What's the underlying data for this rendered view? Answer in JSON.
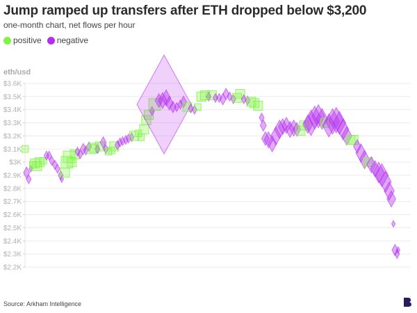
{
  "title": "Jump ramped up transfers after ETH dropped below $3,200",
  "subtitle": "one-month chart, net flows per hour",
  "legend": [
    {
      "label": "positive",
      "color": "#7ef542"
    },
    {
      "label": "negative",
      "color": "#b52ef0"
    }
  ],
  "source": "Source: Arkham Intelligence",
  "logo_text": "B",
  "chart_data": {
    "type": "scatter",
    "title": "Jump ramped up transfers after ETH dropped below $3,200",
    "subtitle": "one-month chart, net flows per hour",
    "ylabel": "eth/usd",
    "xlabel": "",
    "ylim": [
      2200,
      3600
    ],
    "xlim": [
      0,
      735
    ],
    "y_ticks": [
      "$2.2K",
      "$2.3K",
      "$2.4K",
      "$2.5K",
      "$2.6K",
      "$2.7K",
      "$2.8K",
      "$2.9K",
      "$3K",
      "$3.1K",
      "$3.2K",
      "$3.3K",
      "$3.4K",
      "$3.5K",
      "$3.6K"
    ],
    "y_tick_values": [
      2200,
      2300,
      2400,
      2500,
      2600,
      2700,
      2800,
      2900,
      3000,
      3100,
      3200,
      3300,
      3400,
      3500,
      3600
    ],
    "grid": true,
    "legend_placement": "top-left",
    "colors": {
      "positive": "#7ef542",
      "negative": "#b52ef0"
    },
    "marker_shapes": {
      "positive": "square",
      "negative": "diamond"
    },
    "points_fields": [
      "hour",
      "eth_usd",
      "net_flow"
    ],
    "points": [
      [
        0,
        3100,
        1
      ],
      [
        3,
        2920,
        -3
      ],
      [
        7,
        2870,
        -2
      ],
      [
        11,
        2950,
        -1
      ],
      [
        15,
        2980,
        1
      ],
      [
        19,
        2990,
        2
      ],
      [
        23,
        2970,
        2
      ],
      [
        28,
        3000,
        2
      ],
      [
        35,
        3010,
        1
      ],
      [
        41,
        3050,
        -2
      ],
      [
        46,
        3050,
        -2
      ],
      [
        51,
        3010,
        -2
      ],
      [
        57,
        2980,
        -2
      ],
      [
        62,
        2950,
        -2
      ],
      [
        68,
        2900,
        -2
      ],
      [
        70,
        2870,
        -1
      ],
      [
        76,
        2920,
        2
      ],
      [
        80,
        3000,
        3
      ],
      [
        84,
        3040,
        3
      ],
      [
        89,
        3000,
        2
      ],
      [
        95,
        3060,
        2
      ],
      [
        100,
        3080,
        -2
      ],
      [
        105,
        3060,
        -2
      ],
      [
        111,
        3100,
        -3
      ],
      [
        116,
        3090,
        -2
      ],
      [
        122,
        3120,
        -2
      ],
      [
        127,
        3100,
        2
      ],
      [
        132,
        3110,
        2
      ],
      [
        138,
        3100,
        -2
      ],
      [
        143,
        3120,
        2
      ],
      [
        149,
        3150,
        -3
      ],
      [
        154,
        3100,
        -2
      ],
      [
        159,
        3080,
        1
      ],
      [
        165,
        3090,
        1
      ],
      [
        170,
        3120,
        2
      ],
      [
        176,
        3130,
        -2
      ],
      [
        181,
        3150,
        -2
      ],
      [
        186,
        3160,
        -2
      ],
      [
        192,
        3170,
        -2
      ],
      [
        197,
        3180,
        -2
      ],
      [
        203,
        3190,
        -2
      ],
      [
        208,
        3200,
        2
      ],
      [
        216,
        3220,
        1
      ],
      [
        221,
        3190,
        1
      ],
      [
        227,
        3250,
        2
      ],
      [
        231,
        3320,
        2
      ],
      [
        236,
        3360,
        2
      ],
      [
        242,
        3390,
        -2
      ],
      [
        247,
        3440,
        3
      ],
      [
        255,
        3470,
        -4
      ],
      [
        262,
        3470,
        -5
      ],
      [
        265,
        3440,
        -40
      ],
      [
        269,
        3490,
        -5
      ],
      [
        275,
        3450,
        -4
      ],
      [
        282,
        3420,
        -3
      ],
      [
        289,
        3420,
        -2
      ],
      [
        296,
        3440,
        -2
      ],
      [
        302,
        3460,
        -3
      ],
      [
        309,
        3420,
        2
      ],
      [
        316,
        3410,
        -2
      ],
      [
        323,
        3400,
        -2
      ],
      [
        329,
        3420,
        1
      ],
      [
        336,
        3500,
        2
      ],
      [
        343,
        3510,
        2
      ],
      [
        350,
        3500,
        -2
      ],
      [
        356,
        3510,
        2
      ],
      [
        363,
        3490,
        -2
      ],
      [
        370,
        3490,
        -2
      ],
      [
        377,
        3480,
        -3
      ],
      [
        383,
        3520,
        -3
      ],
      [
        390,
        3500,
        -2
      ],
      [
        397,
        3480,
        -2
      ],
      [
        404,
        3490,
        2
      ],
      [
        410,
        3520,
        2
      ],
      [
        417,
        3480,
        -2
      ],
      [
        424,
        3470,
        -2
      ],
      [
        431,
        3460,
        2
      ],
      [
        437,
        3450,
        2
      ],
      [
        444,
        3430,
        2
      ],
      [
        451,
        3340,
        -2
      ],
      [
        454,
        3280,
        -3
      ],
      [
        458,
        3180,
        -4
      ],
      [
        464,
        3170,
        -5
      ],
      [
        471,
        3140,
        -5
      ],
      [
        478,
        3200,
        -6
      ],
      [
        485,
        3250,
        -6
      ],
      [
        491,
        3270,
        -5
      ],
      [
        498,
        3280,
        -5
      ],
      [
        505,
        3250,
        -5
      ],
      [
        512,
        3260,
        -5
      ],
      [
        518,
        3250,
        -4
      ],
      [
        525,
        3240,
        2
      ],
      [
        532,
        3280,
        2
      ],
      [
        539,
        3290,
        -6
      ],
      [
        545,
        3300,
        -9
      ],
      [
        552,
        3340,
        -8
      ],
      [
        559,
        3350,
        -8
      ],
      [
        566,
        3330,
        -7
      ],
      [
        572,
        3300,
        2
      ],
      [
        579,
        3280,
        -8
      ],
      [
        586,
        3310,
        -9
      ],
      [
        593,
        3320,
        -9
      ],
      [
        599,
        3300,
        -8
      ],
      [
        606,
        3250,
        -7
      ],
      [
        613,
        3200,
        -6
      ],
      [
        620,
        3170,
        2
      ],
      [
        626,
        3170,
        2
      ],
      [
        633,
        3120,
        -4
      ],
      [
        640,
        3070,
        -6
      ],
      [
        647,
        3020,
        -6
      ],
      [
        653,
        3000,
        2
      ],
      [
        660,
        2980,
        -5
      ],
      [
        667,
        2950,
        -5
      ],
      [
        674,
        2920,
        -7
      ],
      [
        680,
        2900,
        -8
      ],
      [
        687,
        2850,
        -7
      ],
      [
        694,
        2780,
        -6
      ],
      [
        698,
        2720,
        -5
      ],
      [
        702,
        2530,
        -1
      ],
      [
        705,
        2330,
        -3
      ],
      [
        709,
        2300,
        -2
      ],
      [
        711,
        2330,
        -1
      ]
    ]
  }
}
